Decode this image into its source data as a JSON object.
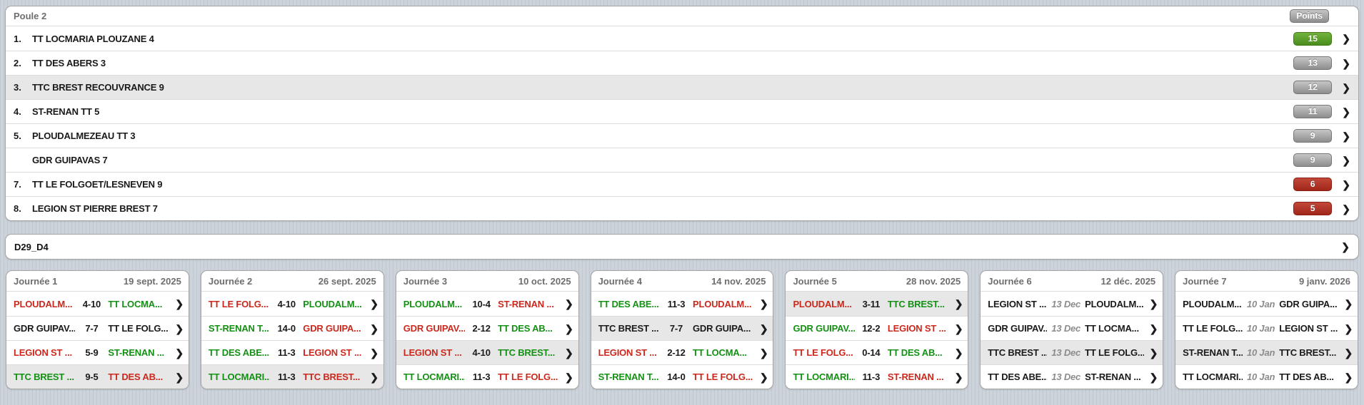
{
  "icons": {
    "chevron": "❯"
  },
  "colors": {
    "winner_green": "#149114",
    "loser_red": "#cb291d",
    "badge_green": "#4a8d1e",
    "badge_red": "#a02619",
    "badge_gray": "#8d8d8d",
    "highlight_row_gray": "#e7e7e7",
    "background_stripe": "#cdd3da"
  },
  "standings": {
    "title": "Poule 2",
    "points_label": "Points",
    "rows": [
      {
        "rank": "1.",
        "team": "TT LOCMARIA PLOUZANE 4",
        "points": "15",
        "badge": "green",
        "row_c": ""
      },
      {
        "rank": "2.",
        "team": "TT DES ABERS 3",
        "points": "13",
        "badge": "gray",
        "row_c": ""
      },
      {
        "rank": "3.",
        "team": "TTC BREST RECOUVRANCE 9",
        "points": "12",
        "badge": "gray",
        "row_c": "hl"
      },
      {
        "rank": "4.",
        "team": "ST-RENAN TT 5",
        "points": "11",
        "badge": "gray",
        "row_c": ""
      },
      {
        "rank": "5.",
        "team": "PLOUDALMEZEAU TT 3",
        "points": "9",
        "badge": "gray",
        "row_c": ""
      },
      {
        "rank": "",
        "team": "GDR GUIPAVAS 7",
        "points": "9",
        "badge": "gray",
        "row_c": ""
      },
      {
        "rank": "7.",
        "team": "TT LE FOLGOET/LESNEVEN 9",
        "points": "6",
        "badge": "red",
        "row_c": ""
      },
      {
        "rank": "8.",
        "team": "LEGION ST PIERRE BREST 7",
        "points": "5",
        "badge": "red",
        "row_c": ""
      }
    ]
  },
  "division": {
    "label": "D29_D4"
  },
  "rounds": [
    {
      "label": "Journée 1",
      "date": "19 sept. 2025",
      "matches": [
        {
          "home": "PLOUDALM...",
          "home_c": "l",
          "mid": "4-10",
          "mid_c": "s",
          "away": "TT LOCMA...",
          "away_c": "w",
          "row_c": ""
        },
        {
          "home": "GDR GUIPAV...",
          "home_c": "d",
          "mid": "7-7",
          "mid_c": "s",
          "away": "TT LE FOLG...",
          "away_c": "d",
          "row_c": ""
        },
        {
          "home": "LEGION ST ...",
          "home_c": "l",
          "mid": "5-9",
          "mid_c": "s",
          "away": "ST-RENAN ...",
          "away_c": "w",
          "row_c": ""
        },
        {
          "home": "TTC BREST ...",
          "home_c": "w",
          "mid": "9-5",
          "mid_c": "s",
          "away": "TT DES AB...",
          "away_c": "l",
          "row_c": "hl"
        }
      ]
    },
    {
      "label": "Journée 2",
      "date": "26 sept. 2025",
      "matches": [
        {
          "home": "TT LE FOLG...",
          "home_c": "l",
          "mid": "4-10",
          "mid_c": "s",
          "away": "PLOUDALM...",
          "away_c": "w",
          "row_c": ""
        },
        {
          "home": "ST-RENAN T...",
          "home_c": "w",
          "mid": "14-0",
          "mid_c": "s",
          "away": "GDR GUIPA...",
          "away_c": "l",
          "row_c": ""
        },
        {
          "home": "TT DES ABE...",
          "home_c": "w",
          "mid": "11-3",
          "mid_c": "s",
          "away": "LEGION ST ...",
          "away_c": "l",
          "row_c": ""
        },
        {
          "home": "TT LOCMARI...",
          "home_c": "w",
          "mid": "11-3",
          "mid_c": "s",
          "away": "TTC BREST...",
          "away_c": "l",
          "row_c": "hl"
        }
      ]
    },
    {
      "label": "Journée 3",
      "date": "10 oct. 2025",
      "matches": [
        {
          "home": "PLOUDALM...",
          "home_c": "w",
          "mid": "10-4",
          "mid_c": "s",
          "away": "ST-RENAN ...",
          "away_c": "l",
          "row_c": ""
        },
        {
          "home": "GDR GUIPAV...",
          "home_c": "l",
          "mid": "2-12",
          "mid_c": "s",
          "away": "TT DES AB...",
          "away_c": "w",
          "row_c": ""
        },
        {
          "home": "LEGION ST ...",
          "home_c": "l",
          "mid": "4-10",
          "mid_c": "s",
          "away": "TTC BREST...",
          "away_c": "w",
          "row_c": "hl"
        },
        {
          "home": "TT LOCMARI...",
          "home_c": "w",
          "mid": "11-3",
          "mid_c": "s",
          "away": "TT LE FOLG...",
          "away_c": "l",
          "row_c": ""
        }
      ]
    },
    {
      "label": "Journée 4",
      "date": "14 nov. 2025",
      "matches": [
        {
          "home": "TT DES ABE...",
          "home_c": "w",
          "mid": "11-3",
          "mid_c": "s",
          "away": "PLOUDALM...",
          "away_c": "l",
          "row_c": ""
        },
        {
          "home": "TTC BREST ...",
          "home_c": "d",
          "mid": "7-7",
          "mid_c": "s",
          "away": "GDR GUIPA...",
          "away_c": "d",
          "row_c": "hl"
        },
        {
          "home": "LEGION ST ...",
          "home_c": "l",
          "mid": "2-12",
          "mid_c": "s",
          "away": "TT LOCMA...",
          "away_c": "w",
          "row_c": ""
        },
        {
          "home": "ST-RENAN T...",
          "home_c": "w",
          "mid": "14-0",
          "mid_c": "s",
          "away": "TT LE FOLG...",
          "away_c": "l",
          "row_c": ""
        }
      ]
    },
    {
      "label": "Journée 5",
      "date": "28 nov. 2025",
      "matches": [
        {
          "home": "PLOUDALM...",
          "home_c": "l",
          "mid": "3-11",
          "mid_c": "s",
          "away": "TTC BREST...",
          "away_c": "w",
          "row_c": "hl"
        },
        {
          "home": "GDR GUIPAV...",
          "home_c": "w",
          "mid": "12-2",
          "mid_c": "s",
          "away": "LEGION ST ...",
          "away_c": "l",
          "row_c": ""
        },
        {
          "home": "TT LE FOLG...",
          "home_c": "l",
          "mid": "0-14",
          "mid_c": "s",
          "away": "TT DES AB...",
          "away_c": "w",
          "row_c": ""
        },
        {
          "home": "TT LOCMARI...",
          "home_c": "w",
          "mid": "11-3",
          "mid_c": "s",
          "away": "ST-RENAN ...",
          "away_c": "l",
          "row_c": ""
        }
      ]
    },
    {
      "label": "Journée 6",
      "date": "12 déc. 2025",
      "matches": [
        {
          "home": "LEGION ST ...",
          "home_c": "u",
          "mid": "13 Dec",
          "mid_c": "dt",
          "away": "PLOUDALM...",
          "away_c": "u",
          "row_c": ""
        },
        {
          "home": "GDR GUIPAV...",
          "home_c": "u",
          "mid": "13 Dec",
          "mid_c": "dt",
          "away": "TT LOCMA...",
          "away_c": "u",
          "row_c": ""
        },
        {
          "home": "TTC BREST ...",
          "home_c": "u",
          "mid": "13 Dec",
          "mid_c": "dt",
          "away": "TT LE FOLG...",
          "away_c": "u",
          "row_c": "hl"
        },
        {
          "home": "TT DES ABE...",
          "home_c": "u",
          "mid": "13 Dec",
          "mid_c": "dt",
          "away": "ST-RENAN ...",
          "away_c": "u",
          "row_c": ""
        }
      ]
    },
    {
      "label": "Journée 7",
      "date": "9 janv. 2026",
      "matches": [
        {
          "home": "PLOUDALM...",
          "home_c": "u",
          "mid": "10 Jan",
          "mid_c": "dt",
          "away": "GDR GUIPA...",
          "away_c": "u",
          "row_c": ""
        },
        {
          "home": "TT LE FOLG...",
          "home_c": "u",
          "mid": "10 Jan",
          "mid_c": "dt",
          "away": "LEGION ST ...",
          "away_c": "u",
          "row_c": ""
        },
        {
          "home": "ST-RENAN T...",
          "home_c": "u",
          "mid": "10 Jan",
          "mid_c": "dt",
          "away": "TTC BREST...",
          "away_c": "u",
          "row_c": "hl"
        },
        {
          "home": "TT LOCMARI...",
          "home_c": "u",
          "mid": "10 Jan",
          "mid_c": "dt",
          "away": "TT DES AB...",
          "away_c": "u",
          "row_c": ""
        }
      ]
    }
  ]
}
